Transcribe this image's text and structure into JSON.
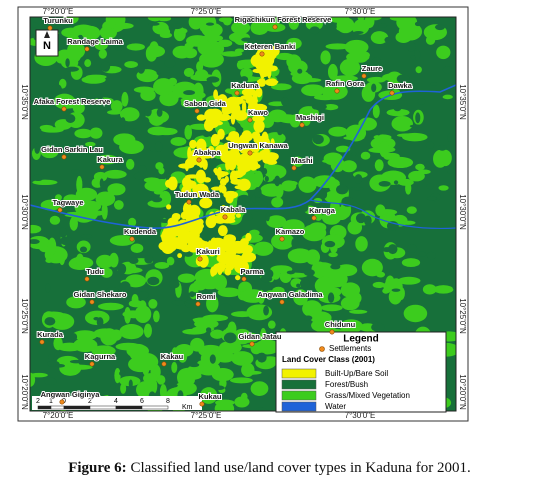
{
  "map": {
    "top_ticks": [
      "7°20'0\"E",
      "7°25'0\"E",
      "7°30'0\"E"
    ],
    "bottom_ticks": [
      "7°20'0\"E",
      "7°25'0\"E",
      "7°30'0\"E"
    ],
    "left_ticks": [
      "10°35'0\"N",
      "10°30'0\"N",
      "10°25'0\"N",
      "10°20'0\"N"
    ],
    "right_ticks": [
      "10°35'0\"N",
      "10°30'0\"N",
      "10°25'0\"N",
      "10°20'0\"N"
    ],
    "north": "N",
    "settlements": [
      "Turunku",
      "Randage Laima",
      "Rigachikun Forest Reserve",
      "Keteren Banki",
      "Zaure",
      "Kaduna",
      "Rafin Gora",
      "Dawka",
      "Afaka Forest Reserve",
      "Sabon Gida",
      "Kawo",
      "Mashigi",
      "Gidan Sarkin Lau",
      "Ungwan Kanawa",
      "Abakpa",
      "Mashi",
      "Kakura",
      "Tudun Wada",
      "Tagwaye",
      "Kabala",
      "Karuga",
      "Kudenda",
      "Kamazo",
      "Kakuri",
      "Tudu",
      "Parma",
      "Gidan Shekaro",
      "Romi",
      "Angwan Galadima",
      "Chidunu",
      "Gidan Jatau",
      "Kurada",
      "Kagurna",
      "Kakau",
      "Angwan Giginya",
      "Kukau"
    ],
    "legend": {
      "title": "Legend",
      "settlement_label": "Settlements",
      "class_title": "Land Cover Class (2001)",
      "classes": [
        {
          "label": "Built-Up/Bare Soil",
          "color": "#f2f200"
        },
        {
          "label": "Forest/Bush",
          "color": "#17703a"
        },
        {
          "label": "Grass/Mixed Vegetation",
          "color": "#3ccc1e"
        },
        {
          "label": "Water",
          "color": "#1f63d8"
        }
      ]
    },
    "scale": {
      "ticks": [
        "2",
        "1",
        "0",
        "2",
        "4",
        "6",
        "8"
      ],
      "unit": "Km"
    }
  },
  "caption": {
    "label": "Figure 6:",
    "text": "Classified land use/land cover types in Kaduna for 2001."
  }
}
